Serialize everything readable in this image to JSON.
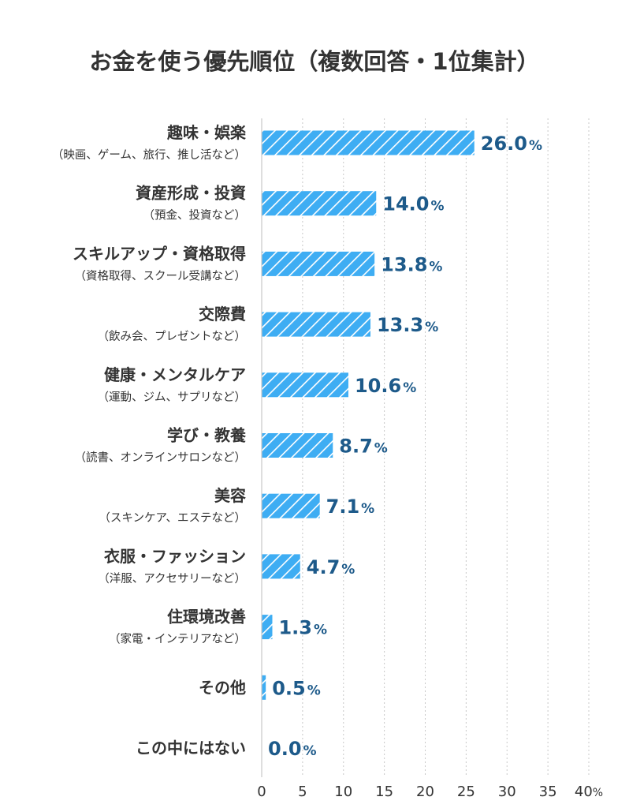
{
  "chart_data": {
    "type": "bar",
    "orientation": "horizontal",
    "title": "お金を使う優先順位（複数回答・1位集計）",
    "categories": [
      {
        "label": "趣味・娯楽",
        "sublabel": "（映画、ゲーム、旅行、推し活など）"
      },
      {
        "label": "資産形成・投資",
        "sublabel": "（預金、投資など）"
      },
      {
        "label": "スキルアップ・資格取得",
        "sublabel": "（資格取得、スクール受講など）"
      },
      {
        "label": "交際費",
        "sublabel": "（飲み会、プレゼントなど）"
      },
      {
        "label": "健康・メンタルケア",
        "sublabel": "（運動、ジム、サプリなど）"
      },
      {
        "label": "学び・教養",
        "sublabel": "（読書、オンラインサロンなど）"
      },
      {
        "label": "美容",
        "sublabel": "（スキンケア、エステなど）"
      },
      {
        "label": "衣服・ファッション",
        "sublabel": "（洋服、アクセサリーなど）"
      },
      {
        "label": "住環境改善",
        "sublabel": "（家電・インテリアなど）"
      },
      {
        "label": "その他",
        "sublabel": ""
      },
      {
        "label": "この中にはない",
        "sublabel": ""
      }
    ],
    "values": [
      26.0,
      14.0,
      13.8,
      13.3,
      10.6,
      8.7,
      7.1,
      4.7,
      1.3,
      0.5,
      0.0
    ],
    "value_unit": "%",
    "xlim": [
      0,
      40
    ],
    "xticks": [
      0,
      5,
      10,
      15,
      20,
      25,
      30,
      35,
      40
    ],
    "xtick_unit": "%",
    "grid": "vertical dotted",
    "legend": "none",
    "colors": {
      "bar_fill": "#3eadf3",
      "bar_hatch": "#ffffff",
      "value_text": "#1d5a8a",
      "text": "#333333",
      "grid": "#c8c8c8"
    }
  }
}
